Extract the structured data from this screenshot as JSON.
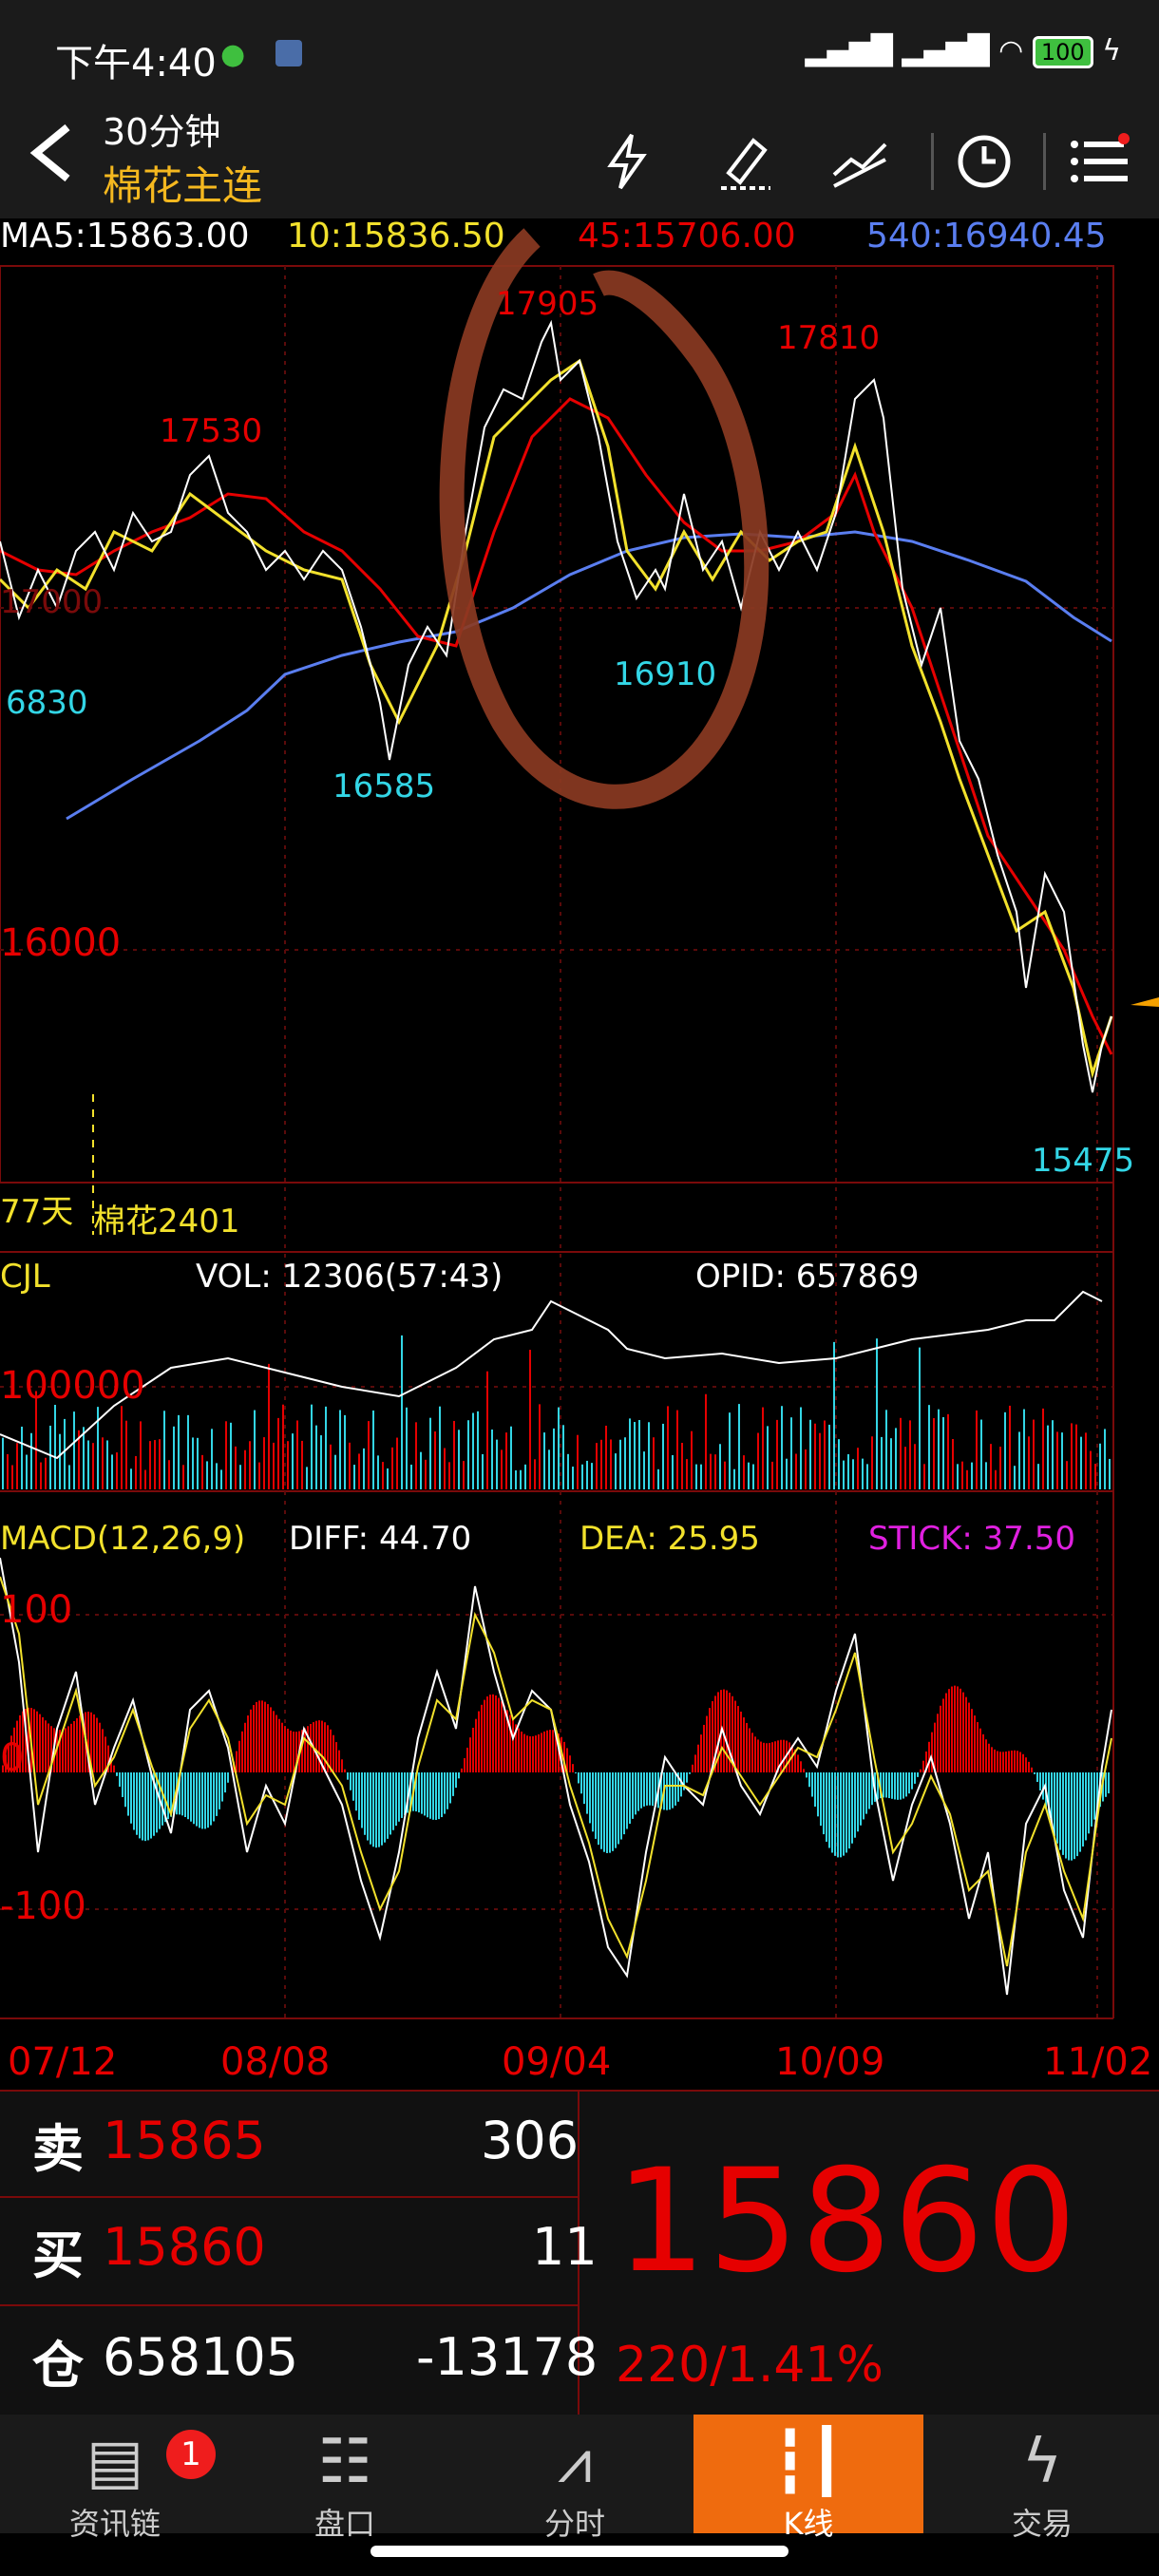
{
  "status": {
    "time": "下午4:40",
    "battery": "100"
  },
  "header": {
    "back_icon": "chevron-left-icon",
    "period": "30分钟",
    "title": "棉花主连"
  },
  "ma": {
    "ma5": "MA5:15863.00",
    "ma10": "10:15836.50",
    "ma45": "45:15706.00",
    "ma540": "540:16940.45"
  },
  "price_labels": {
    "high_1": "17905",
    "high_2": "17810",
    "high_3": "17530",
    "low_1": "16585",
    "low_2": "16910",
    "low_3": "15475",
    "left_low": "6830",
    "left_price": "17000",
    "level_16000": "16000"
  },
  "contract": {
    "days": "77天",
    "name": "棉花2401"
  },
  "volume": {
    "label": "CJL",
    "vol": "VOL: 12306(57:43)",
    "opid": "OPID: 657869",
    "scale": "100000"
  },
  "macd": {
    "label": "MACD(12,26,9)",
    "diff": "DIFF: 44.70",
    "dea": "DEA: 25.95",
    "stick": "STICK: 37.50",
    "tick_100": "100",
    "tick_0": "0",
    "tick_m100": "-100"
  },
  "dates": [
    "07/12",
    "08/08",
    "09/04",
    "10/09",
    "11/02"
  ],
  "quote": {
    "sell_label": "卖",
    "sell_price": "15865",
    "sell_vol": "306",
    "buy_label": "买",
    "buy_price": "15860",
    "buy_vol": "11",
    "oi_label": "仓",
    "oi_value": "658105",
    "oi_change": "-13178",
    "last_price": "15860",
    "change": "220/1.41%"
  },
  "tabs": [
    {
      "label": "资讯链",
      "icon": "news-icon",
      "badge": "1"
    },
    {
      "label": "盘口",
      "icon": "order-book-icon"
    },
    {
      "label": "分时",
      "icon": "intraday-line-icon"
    },
    {
      "label": "K线",
      "icon": "candlestick-icon"
    },
    {
      "label": "交易",
      "icon": "lightning-icon"
    }
  ],
  "colors": {
    "up": "#e60000",
    "down": "#33d6e6",
    "accent": "#ef6b0e",
    "title": "#f5b81f"
  }
}
